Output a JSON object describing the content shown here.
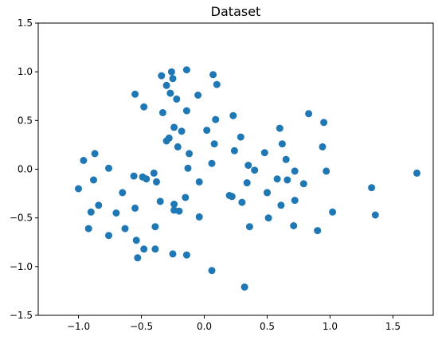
{
  "chart_data": {
    "type": "scatter",
    "title": "Dataset",
    "xlabel": "",
    "ylabel": "",
    "xlim": [
      -1.32,
      1.82
    ],
    "ylim": [
      -1.5,
      1.5
    ],
    "xticks": [
      -1.0,
      -0.5,
      0.0,
      0.5,
      1.0,
      1.5
    ],
    "xtick_labels": [
      "−1.0",
      "−0.5",
      "0.0",
      "0.5",
      "1.0",
      "1.5"
    ],
    "yticks": [
      1.5,
      1.0,
      0.5,
      0.0,
      -0.5,
      -1.0,
      -1.5
    ],
    "ytick_labels": [
      "1.5",
      "1.0",
      "0.5",
      "0.0",
      "−0.5",
      "−1.0",
      "−1.5"
    ],
    "grid": false,
    "legend": "none",
    "color": "#1f77b4",
    "series": [
      {
        "x": [
          -0.34,
          -0.3,
          -0.26,
          -0.25,
          -0.27,
          -0.14,
          -0.05,
          0.07,
          0.1,
          -0.55,
          -0.48,
          -0.22,
          -0.14,
          -0.33,
          -0.28,
          -0.24,
          -0.18,
          -0.3,
          -0.21,
          -0.12,
          0.02,
          0.09,
          0.08,
          0.06,
          0.23,
          0.24,
          0.22,
          0.29,
          0.35,
          0.4,
          0.48,
          0.5,
          0.6,
          0.62,
          0.66,
          0.83,
          0.95,
          0.94,
          0.97,
          0.72,
          0.61,
          0.65,
          0.79,
          -0.96,
          -0.92,
          -0.87,
          -0.88,
          -1.0,
          -0.76,
          -0.84,
          -0.9,
          -0.7,
          -0.65,
          -0.76,
          -0.63,
          -0.56,
          -0.55,
          -0.49,
          -0.54,
          -0.46,
          -0.4,
          -0.38,
          -0.35,
          -0.24,
          -0.39,
          -0.24,
          -0.15,
          -0.13,
          -0.04,
          -0.04,
          -0.2,
          -0.53,
          -0.39,
          -0.14,
          0.2,
          0.3,
          0.34,
          0.36,
          0.5,
          0.51,
          0.58,
          0.72,
          0.71,
          0.9,
          1.02,
          1.33,
          1.36,
          1.69,
          0.06,
          0.32,
          -0.25,
          -0.48
        ],
        "y": [
          0.96,
          0.86,
          1.0,
          0.93,
          0.78,
          1.02,
          0.76,
          0.97,
          0.87,
          0.77,
          0.64,
          0.72,
          0.6,
          0.58,
          0.32,
          0.43,
          0.39,
          0.29,
          0.23,
          0.16,
          0.4,
          0.51,
          0.26,
          0.06,
          0.55,
          0.19,
          -0.28,
          0.33,
          0.04,
          -0.01,
          0.17,
          -0.24,
          0.42,
          0.26,
          -0.11,
          0.57,
          0.48,
          0.23,
          -0.02,
          -0.02,
          -0.37,
          0.1,
          -0.15,
          0.09,
          -0.61,
          0.16,
          -0.11,
          -0.2,
          0.01,
          -0.37,
          -0.44,
          -0.45,
          -0.24,
          -0.68,
          -0.61,
          -0.07,
          -0.4,
          -0.08,
          -0.73,
          -0.1,
          -0.04,
          -0.13,
          -0.33,
          -0.36,
          -0.59,
          -0.42,
          -0.29,
          0.01,
          -0.49,
          -0.13,
          -0.43,
          -0.91,
          -0.82,
          -0.88,
          -0.27,
          -0.34,
          -0.14,
          -0.59,
          -0.24,
          -0.5,
          -0.1,
          -0.32,
          -0.58,
          -0.63,
          -0.44,
          -0.19,
          -0.47,
          -0.04,
          -1.04,
          -1.21,
          -0.87,
          -0.82
        ]
      }
    ]
  }
}
